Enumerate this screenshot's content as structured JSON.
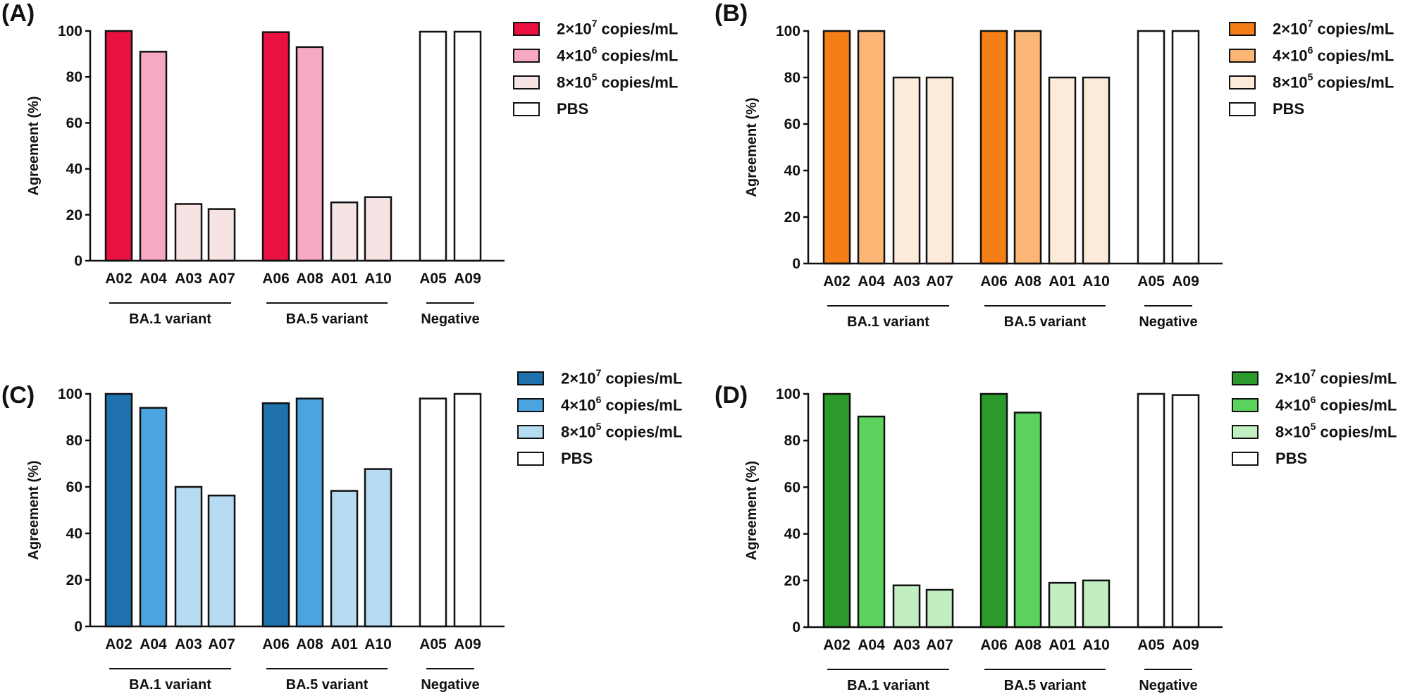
{
  "chart_data": [
    {
      "type": "bar",
      "panel": "(A)",
      "ylabel": "Agreement (%)",
      "xlabel": "",
      "ylim": [
        0,
        100
      ],
      "yticks": [
        0,
        20,
        40,
        60,
        80,
        100
      ],
      "grid": false,
      "legend_position": "top-right",
      "categories": [
        "A02",
        "A04",
        "A03",
        "A07",
        "A06",
        "A08",
        "A01",
        "A10",
        "A05",
        "A09"
      ],
      "values": [
        100,
        91,
        24.7,
        22.5,
        99.5,
        93,
        25.4,
        27.7,
        99.7,
        99.7
      ],
      "bar_series": [
        0,
        1,
        2,
        2,
        0,
        1,
        2,
        2,
        3,
        3
      ],
      "groups": [
        {
          "label": "BA.1 variant",
          "members": [
            "A02",
            "A04",
            "A03",
            "A07"
          ]
        },
        {
          "label": "BA.5 variant",
          "members": [
            "A06",
            "A08",
            "A01",
            "A10"
          ]
        },
        {
          "label": "Negative",
          "members": [
            "A05",
            "A09"
          ]
        }
      ],
      "series": [
        {
          "name_base": "2×10",
          "exp": "7",
          "unit": " copies/mL",
          "color": "#e8113f"
        },
        {
          "name_base": "4×10",
          "exp": "6",
          "unit": " copies/mL",
          "color": "#f7a8c3"
        },
        {
          "name_base": "8×10",
          "exp": "5",
          "unit": " copies/mL",
          "color": "#f6e4e4"
        },
        {
          "name_base": "PBS",
          "exp": "",
          "unit": "",
          "color": "#ffffff"
        }
      ]
    },
    {
      "type": "bar",
      "panel": "(B)",
      "ylabel": "Agreement (%)",
      "xlabel": "",
      "ylim": [
        0,
        100
      ],
      "yticks": [
        0,
        20,
        40,
        60,
        80,
        100
      ],
      "grid": false,
      "legend_position": "top-right",
      "categories": [
        "A02",
        "A04",
        "A03",
        "A07",
        "A06",
        "A08",
        "A01",
        "A10",
        "A05",
        "A09"
      ],
      "values": [
        100,
        100,
        80,
        80,
        100,
        100,
        80,
        80,
        100,
        100
      ],
      "bar_series": [
        0,
        1,
        2,
        2,
        0,
        1,
        2,
        2,
        3,
        3
      ],
      "groups": [
        {
          "label": "BA.1 variant",
          "members": [
            "A02",
            "A04",
            "A03",
            "A07"
          ]
        },
        {
          "label": "BA.5 variant",
          "members": [
            "A06",
            "A08",
            "A01",
            "A10"
          ]
        },
        {
          "label": "Negative",
          "members": [
            "A05",
            "A09"
          ]
        }
      ],
      "series": [
        {
          "name_base": "2×10",
          "exp": "7",
          "unit": " copies/mL",
          "color": "#f57f17"
        },
        {
          "name_base": "4×10",
          "exp": "6",
          "unit": " copies/mL",
          "color": "#fbb574"
        },
        {
          "name_base": "8×10",
          "exp": "5",
          "unit": " copies/mL",
          "color": "#fdebd9"
        },
        {
          "name_base": "PBS",
          "exp": "",
          "unit": "",
          "color": "#ffffff"
        }
      ]
    },
    {
      "type": "bar",
      "panel": "(C)",
      "ylabel": "Agreement (%)",
      "xlabel": "",
      "ylim": [
        0,
        100
      ],
      "yticks": [
        0,
        20,
        40,
        60,
        80,
        100
      ],
      "grid": false,
      "legend_position": "top-right",
      "categories": [
        "A02",
        "A04",
        "A03",
        "A07",
        "A06",
        "A08",
        "A01",
        "A10",
        "A05",
        "A09"
      ],
      "values": [
        100,
        94,
        60,
        56.3,
        96,
        98,
        58.3,
        67.7,
        98,
        100
      ],
      "bar_series": [
        0,
        1,
        2,
        2,
        0,
        1,
        2,
        2,
        3,
        3
      ],
      "groups": [
        {
          "label": "BA.1 variant",
          "members": [
            "A02",
            "A04",
            "A03",
            "A07"
          ]
        },
        {
          "label": "BA.5 variant",
          "members": [
            "A06",
            "A08",
            "A01",
            "A10"
          ]
        },
        {
          "label": "Negative",
          "members": [
            "A05",
            "A09"
          ]
        }
      ],
      "series": [
        {
          "name_base": "2×10",
          "exp": "7",
          "unit": " copies/mL",
          "color": "#1f72ad"
        },
        {
          "name_base": "4×10",
          "exp": "6",
          "unit": " copies/mL",
          "color": "#4ba4e0"
        },
        {
          "name_base": "8×10",
          "exp": "5",
          "unit": " copies/mL",
          "color": "#b7dbf2"
        },
        {
          "name_base": "PBS",
          "exp": "",
          "unit": "",
          "color": "#ffffff"
        }
      ]
    },
    {
      "type": "bar",
      "panel": "(D)",
      "ylabel": "Agreement (%)",
      "xlabel": "",
      "ylim": [
        0,
        100
      ],
      "yticks": [
        0,
        20,
        40,
        60,
        80,
        100
      ],
      "grid": false,
      "legend_position": "top-right",
      "categories": [
        "A02",
        "A04",
        "A03",
        "A07",
        "A06",
        "A08",
        "A01",
        "A10",
        "A05",
        "A09"
      ],
      "values": [
        100,
        90.3,
        17.9,
        16,
        100,
        92,
        19,
        20,
        100,
        99.5
      ],
      "bar_series": [
        0,
        1,
        2,
        2,
        0,
        1,
        2,
        2,
        3,
        3
      ],
      "groups": [
        {
          "label": "BA.1 variant",
          "members": [
            "A02",
            "A04",
            "A03",
            "A07"
          ]
        },
        {
          "label": "BA.5 variant",
          "members": [
            "A06",
            "A08",
            "A01",
            "A10"
          ]
        },
        {
          "label": "Negative",
          "members": [
            "A05",
            "A09"
          ]
        }
      ],
      "series": [
        {
          "name_base": "2×10",
          "exp": "7",
          "unit": " copies/mL",
          "color": "#2b9a2b"
        },
        {
          "name_base": "4×10",
          "exp": "6",
          "unit": " copies/mL",
          "color": "#5cd35c"
        },
        {
          "name_base": "8×10",
          "exp": "5",
          "unit": " copies/mL",
          "color": "#c2efc2"
        },
        {
          "name_base": "PBS",
          "exp": "",
          "unit": "",
          "color": "#ffffff"
        }
      ]
    }
  ]
}
